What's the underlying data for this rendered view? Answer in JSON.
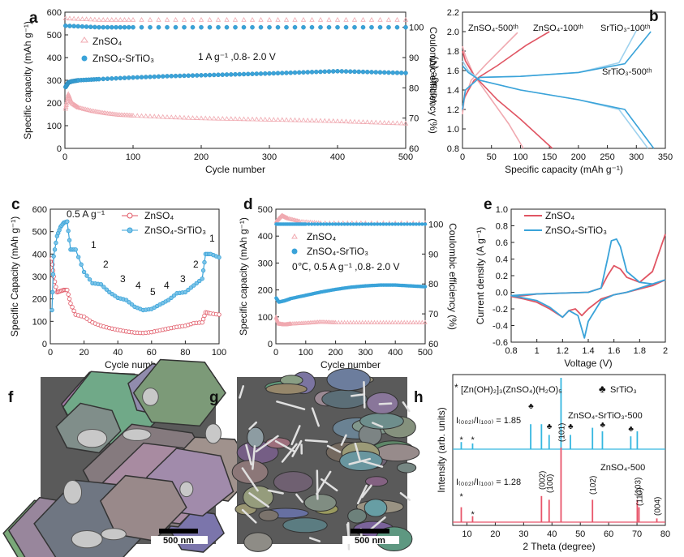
{
  "panel_letters": [
    "a",
    "b",
    "c",
    "d",
    "e",
    "f",
    "g",
    "h"
  ],
  "colors": {
    "red": "#e05563",
    "red_light": "#f0a9b0",
    "blue": "#3aa3d9",
    "blue_light": "#9fd2ee",
    "red_xrd": "#e8556a",
    "blue_xrd": "#35b7e0"
  },
  "sem": [
    {
      "scale_label": "500 nm",
      "texture": "large-hexagonal-plates"
    },
    {
      "scale_label": "500 nm",
      "texture": "small-flakes-and-rods"
    }
  ],
  "chart_data": [
    {
      "type": "scatter",
      "panel": "a",
      "xlabel": "Cycle number",
      "ylabel": "Specific capacity (mAh g⁻¹)",
      "y2label": "Coulombic efficiency (%)",
      "xlim": [
        0,
        500
      ],
      "ylim": [
        0,
        600
      ],
      "y2lim": [
        60,
        105
      ],
      "xticks": [
        0,
        100,
        200,
        300,
        400,
        500
      ],
      "yticks": [
        0,
        100,
        200,
        300,
        400,
        500,
        600
      ],
      "y2ticks": [
        60,
        70,
        80,
        90,
        100
      ],
      "annotation": "1 A g⁻¹ ,0.8- 2.0 V",
      "series": [
        {
          "name": "ZnSO₄",
          "role": "capacity",
          "color": "red_light",
          "x": [
            1,
            5,
            10,
            20,
            40,
            60,
            80,
            100,
            150,
            200,
            250,
            300,
            350,
            400,
            450,
            500
          ],
          "values": [
            175,
            240,
            200,
            180,
            165,
            155,
            148,
            145,
            138,
            133,
            130,
            127,
            124,
            120,
            115,
            110
          ]
        },
        {
          "name": "ZnSO₄",
          "role": "efficiency",
          "color": "red_light",
          "x": [
            1,
            50,
            100,
            200,
            300,
            400,
            500
          ],
          "values": [
            103,
            102.5,
            102.5,
            102.5,
            102.5,
            102.5,
            102.5
          ]
        },
        {
          "name": "ZnSO₄-SrTiO₃",
          "role": "capacity",
          "color": "blue",
          "x": [
            1,
            5,
            10,
            20,
            50,
            100,
            150,
            200,
            250,
            300,
            350,
            400,
            450,
            500
          ],
          "values": [
            270,
            290,
            295,
            300,
            305,
            312,
            318,
            322,
            326,
            330,
            335,
            340,
            336,
            332
          ]
        },
        {
          "name": "ZnSO₄-SrTiO₃",
          "role": "efficiency",
          "color": "blue",
          "x": [
            1,
            50,
            100,
            200,
            300,
            400,
            500
          ],
          "values": [
            100.5,
            100,
            100,
            100,
            100,
            100,
            100
          ]
        }
      ]
    },
    {
      "type": "line",
      "panel": "b",
      "xlabel": "Specific capacity (mAh g⁻¹)",
      "ylabel": "Voltage (V)",
      "xlim": [
        0,
        350
      ],
      "ylim": [
        0.8,
        2.2
      ],
      "xticks": [
        0,
        50,
        100,
        150,
        200,
        250,
        300,
        350
      ],
      "yticks": [
        0.8,
        1.0,
        1.2,
        1.4,
        1.6,
        1.8,
        2.0,
        2.2
      ],
      "labels": [
        "ZnSO₄-500ᵗʰ",
        "ZnSO₄-100ᵗʰ",
        "SrTiO₃-100ᵗʰ",
        "SrTiO₃-500ᵗʰ"
      ],
      "series": [
        {
          "name": "ZnSO₄-500",
          "color": "red_light",
          "x": [
            0,
            5,
            20,
            50,
            80,
            105,
            95,
            70,
            40,
            15,
            3,
            0
          ],
          "values": [
            1.85,
            1.75,
            1.55,
            1.3,
            1.05,
            0.8,
            1.99,
            1.84,
            1.66,
            1.5,
            1.3,
            1.15
          ]
        },
        {
          "name": "ZnSO₄-100",
          "color": "red",
          "x": [
            0,
            5,
            20,
            60,
            100,
            155,
            150,
            110,
            60,
            20,
            3,
            0
          ],
          "values": [
            1.8,
            1.7,
            1.55,
            1.3,
            1.1,
            0.8,
            2.0,
            1.86,
            1.65,
            1.5,
            1.32,
            1.2
          ]
        },
        {
          "name": "SrTiO₃-100",
          "color": "blue_light",
          "x": [
            0,
            10,
            30,
            100,
            200,
            270,
            320,
            300,
            270,
            200,
            100,
            30,
            5,
            0
          ],
          "values": [
            1.7,
            1.6,
            1.5,
            1.4,
            1.3,
            1.2,
            0.8,
            2.01,
            1.68,
            1.58,
            1.54,
            1.53,
            1.4,
            1.2
          ]
        },
        {
          "name": "SrTiO₃-500",
          "color": "blue",
          "x": [
            0,
            10,
            30,
            100,
            200,
            280,
            330,
            325,
            280,
            200,
            100,
            30,
            5,
            0
          ],
          "values": [
            1.65,
            1.58,
            1.5,
            1.4,
            1.3,
            1.2,
            0.8,
            2.0,
            1.67,
            1.58,
            1.54,
            1.53,
            1.4,
            1.2
          ]
        }
      ]
    },
    {
      "type": "line",
      "panel": "c",
      "xlabel": "Cycle number",
      "ylabel": "Specific Capacity (mAh g⁻¹)",
      "xlim": [
        0,
        100
      ],
      "ylim": [
        0,
        600
      ],
      "xticks": [
        0,
        20,
        40,
        60,
        80,
        100
      ],
      "yticks": [
        0,
        100,
        200,
        300,
        400,
        500,
        600
      ],
      "rate_labels": [
        "0.5 A g⁻¹",
        "1",
        "2",
        "3",
        "4",
        "5",
        "4",
        "3",
        "2",
        "1"
      ],
      "series": [
        {
          "name": "ZnSO₄",
          "color": "red",
          "x": [
            1,
            2,
            4,
            6,
            8,
            10,
            12,
            15,
            20,
            25,
            30,
            35,
            40,
            45,
            50,
            55,
            60,
            65,
            70,
            75,
            80,
            85,
            90,
            92,
            95,
            100
          ],
          "values": [
            380,
            300,
            230,
            235,
            240,
            240,
            180,
            130,
            120,
            95,
            80,
            70,
            62,
            55,
            50,
            48,
            52,
            60,
            68,
            75,
            80,
            92,
            95,
            140,
            135,
            130
          ]
        },
        {
          "name": "ZnSO₄-SrTiO₃",
          "color": "blue",
          "x": [
            1,
            2,
            4,
            6,
            8,
            10,
            12,
            15,
            20,
            25,
            30,
            35,
            40,
            45,
            50,
            55,
            60,
            65,
            70,
            75,
            80,
            85,
            90,
            92,
            95,
            100
          ],
          "values": [
            150,
            390,
            480,
            520,
            540,
            545,
            420,
            420,
            320,
            270,
            265,
            230,
            205,
            195,
            165,
            150,
            155,
            175,
            195,
            225,
            230,
            260,
            290,
            400,
            400,
            385
          ]
        }
      ]
    },
    {
      "type": "scatter",
      "panel": "d",
      "xlabel": "Cycle number",
      "ylabel": "Specific capacity (mAh g⁻¹)",
      "y2label": "Coulombic efficiency (%)",
      "xlim": [
        0,
        500
      ],
      "ylim": [
        0,
        500
      ],
      "y2lim": [
        60,
        105
      ],
      "xticks": [
        0,
        100,
        200,
        300,
        400,
        500
      ],
      "yticks": [
        0,
        100,
        200,
        300,
        400,
        500
      ],
      "y2ticks": [
        60,
        70,
        80,
        90,
        100
      ],
      "annotation": "0℃, 0.5 A g⁻¹ ,0.8- 2.0 V",
      "series": [
        {
          "name": "ZnSO₄",
          "role": "capacity",
          "color": "red_light",
          "x": [
            1,
            10,
            30,
            50,
            100,
            150,
            200,
            300,
            400,
            500
          ],
          "values": [
            100,
            75,
            72,
            75,
            78,
            82,
            80,
            80,
            80,
            80
          ]
        },
        {
          "name": "ZnSO₄",
          "role": "efficiency",
          "color": "red_light",
          "x": [
            1,
            20,
            40,
            80,
            150,
            300,
            500
          ],
          "values": [
            101,
            103,
            102,
            101,
            100.5,
            100.5,
            100.5
          ]
        },
        {
          "name": "ZnSO₄-SrTiO₃",
          "role": "capacity",
          "color": "blue",
          "x": [
            1,
            10,
            30,
            50,
            100,
            150,
            200,
            250,
            300,
            350,
            400,
            450,
            500
          ],
          "values": [
            170,
            155,
            160,
            168,
            180,
            192,
            202,
            210,
            215,
            218,
            218,
            215,
            212
          ]
        },
        {
          "name": "ZnSO₄-SrTiO₃",
          "role": "efficiency",
          "color": "blue",
          "x": [
            1,
            50,
            100,
            200,
            300,
            400,
            500
          ],
          "values": [
            100,
            100,
            100,
            100,
            100,
            100,
            100
          ]
        }
      ]
    },
    {
      "type": "line",
      "panel": "e",
      "xlabel": "Voltage (V)",
      "ylabel": "Current density (A g⁻¹)",
      "xlim": [
        0.8,
        2.0
      ],
      "ylim": [
        -0.6,
        1.0
      ],
      "xticks": [
        0.8,
        1.0,
        1.2,
        1.4,
        1.6,
        1.8,
        2.0
      ],
      "yticks": [
        -0.6,
        -0.4,
        -0.2,
        0.0,
        0.2,
        0.4,
        0.6,
        0.8,
        1.0
      ],
      "series": [
        {
          "name": "ZnSO₄",
          "color": "red",
          "x": [
            2.0,
            1.9,
            1.8,
            1.7,
            1.6,
            1.5,
            1.4,
            1.35,
            1.3,
            1.25,
            1.2,
            1.1,
            1.0,
            0.9,
            0.8,
            0.9,
            1.0,
            1.2,
            1.4,
            1.5,
            1.55,
            1.6,
            1.65,
            1.7,
            1.8,
            1.9,
            2.0
          ],
          "values": [
            0.15,
            0.08,
            0.04,
            0.0,
            -0.03,
            -0.08,
            -0.2,
            -0.28,
            -0.2,
            -0.22,
            -0.3,
            -0.2,
            -0.12,
            -0.08,
            -0.05,
            -0.04,
            -0.02,
            -0.01,
            0.0,
            0.05,
            0.2,
            0.32,
            0.28,
            0.18,
            0.12,
            0.25,
            0.7
          ]
        },
        {
          "name": "ZnSO₄-SrTiO₃",
          "color": "blue",
          "x": [
            2.0,
            1.9,
            1.8,
            1.7,
            1.6,
            1.5,
            1.4,
            1.37,
            1.32,
            1.25,
            1.2,
            1.1,
            1.0,
            0.9,
            0.8,
            0.9,
            1.0,
            1.2,
            1.4,
            1.5,
            1.55,
            1.58,
            1.62,
            1.65,
            1.7,
            1.8,
            1.9,
            2.0
          ],
          "values": [
            0.15,
            0.1,
            0.05,
            0.0,
            -0.03,
            -0.1,
            -0.35,
            -0.55,
            -0.28,
            -0.22,
            -0.3,
            -0.18,
            -0.1,
            -0.07,
            -0.04,
            -0.03,
            -0.02,
            -0.01,
            0.0,
            0.05,
            0.4,
            0.62,
            0.64,
            0.55,
            0.25,
            0.12,
            0.1,
            0.15
          ]
        }
      ]
    },
    {
      "type": "bar",
      "panel": "h",
      "xlabel": "2 Theta (degree)",
      "ylabel": "Intensity (arb. units)",
      "xlim": [
        5,
        80
      ],
      "xticks": [
        10,
        20,
        30,
        40,
        50,
        60,
        70,
        80
      ],
      "legend": [
        "[Zn(OH)₂]₃(ZnSO₄)(H₂O)₅",
        "SrTiO₃"
      ],
      "ratios": [
        "I₍₀₀₂₎/I₍₁₀₀₎ = 1.85",
        "I₍₀₀₂₎/I₍₁₀₀₎ = 1.28"
      ],
      "peak_labels": [
        "(002)",
        "(100)",
        "(101)",
        "(102)",
        "(103)",
        "(110)",
        "(004)"
      ],
      "series": [
        {
          "name": "ZnSO₄-SrTiO₃-500",
          "color": "blue_xrd",
          "x": [
            8,
            12,
            32.5,
            36.3,
            39,
            43.2,
            46.5,
            54.3,
            57.8,
            67.8,
            70.1
          ],
          "values": [
            0.1,
            0.08,
            0.35,
            0.35,
            0.2,
            1.0,
            0.2,
            0.3,
            0.25,
            0.18,
            0.25
          ]
        },
        {
          "name": "ZnSO₄-500",
          "color": "red_xrd",
          "x": [
            8,
            12,
            36.3,
            39,
            43.2,
            54.3,
            70.1,
            70.7,
            77
          ],
          "values": [
            0.2,
            0.08,
            0.35,
            0.3,
            1.0,
            0.3,
            0.3,
            0.2,
            0.05
          ]
        }
      ]
    }
  ]
}
